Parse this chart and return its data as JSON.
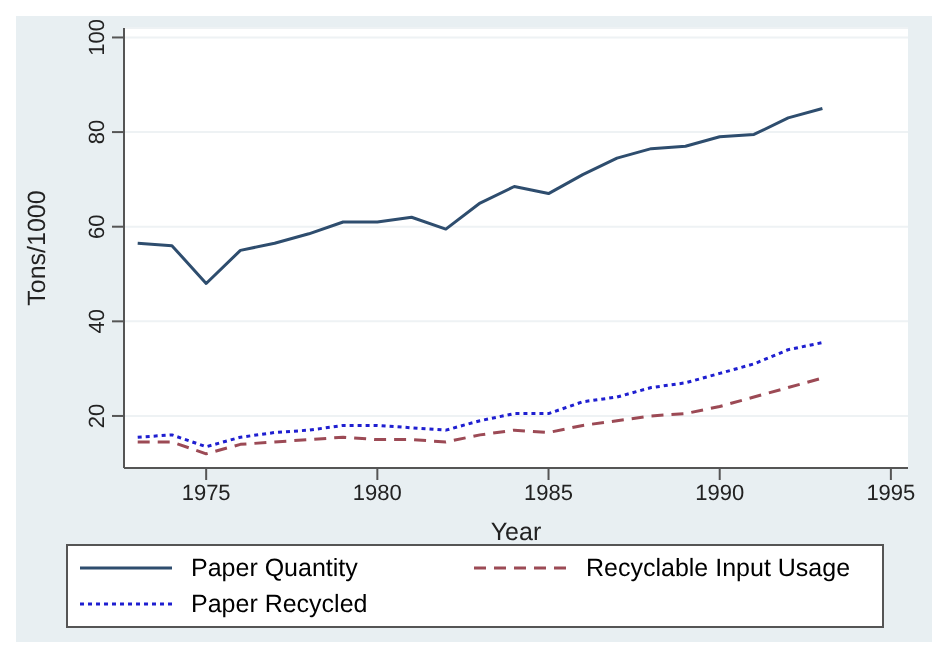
{
  "chart_data": {
    "type": "line",
    "xlabel": "Year",
    "ylabel": "Tons/1000",
    "x": [
      1973,
      1974,
      1975,
      1976,
      1977,
      1978,
      1979,
      1980,
      1981,
      1982,
      1983,
      1984,
      1985,
      1986,
      1987,
      1988,
      1989,
      1990,
      1991,
      1992,
      1993
    ],
    "series": [
      {
        "name": "Paper Quantity",
        "color": "#2e4d6e",
        "line_style": "solid",
        "values": [
          56.5,
          56,
          48,
          55,
          56.5,
          58.5,
          61,
          61,
          62,
          59.5,
          65,
          68.5,
          67,
          71,
          74.5,
          76.5,
          77,
          79,
          79.5,
          83,
          85
        ]
      },
      {
        "name": "Recyclable Input Usage",
        "color": "#9c4a55",
        "line_style": "dashed",
        "values": [
          14.5,
          14.5,
          12,
          14,
          14.5,
          15,
          15.5,
          15,
          15,
          14.5,
          16,
          17,
          16.5,
          18,
          19,
          20,
          20.5,
          22,
          24,
          26,
          28
        ]
      },
      {
        "name": "Paper Recycled",
        "color": "#1f1fd0",
        "line_style": "dotted",
        "values": [
          15.5,
          16,
          13.5,
          15.5,
          16.5,
          17,
          18,
          18,
          17.5,
          17,
          19,
          20.5,
          20.5,
          23,
          24,
          26,
          27,
          29,
          31,
          34,
          35.5
        ]
      }
    ],
    "xlim": [
      1972.6,
      1995.5
    ],
    "xticks": [
      1975,
      1980,
      1985,
      1990,
      1995
    ],
    "ylim": [
      9,
      102
    ],
    "yticks": [
      20,
      40,
      60,
      80,
      100
    ],
    "grid": "y",
    "legend": "bottom",
    "marker": "none"
  }
}
